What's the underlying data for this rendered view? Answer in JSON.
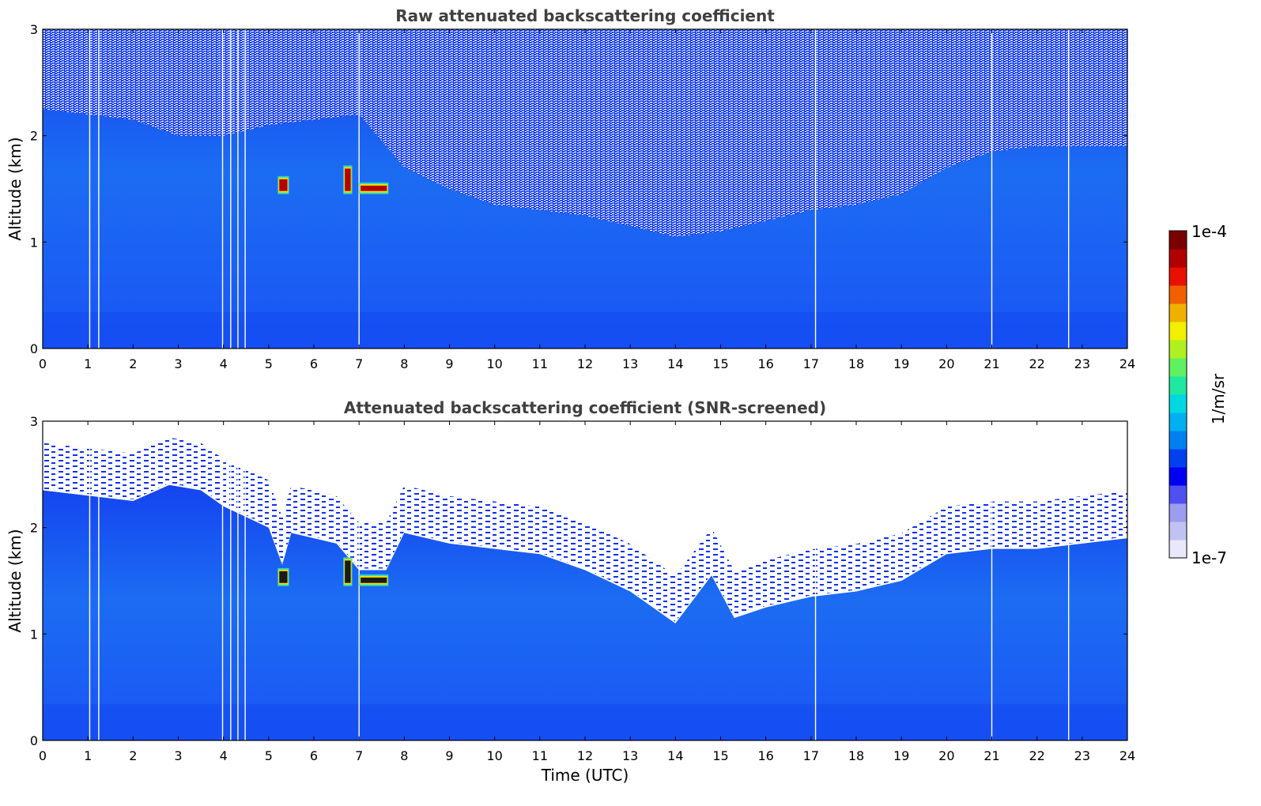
{
  "chart_data": [
    {
      "type": "heatmap",
      "id": "raw",
      "title": "Raw attenuated backscattering coefficient",
      "xlabel": "",
      "ylabel": "Altitude (km)",
      "xlim": [
        0,
        24
      ],
      "ylim": [
        0,
        3
      ],
      "xticks": [
        "0",
        "1",
        "2",
        "3",
        "4",
        "5",
        "6",
        "7",
        "8",
        "9",
        "10",
        "11",
        "12",
        "13",
        "14",
        "15",
        "16",
        "17",
        "18",
        "19",
        "20",
        "21",
        "22",
        "23",
        "24"
      ],
      "yticks": [
        "0",
        "1",
        "2",
        "3"
      ],
      "missing_profiles_utc": [
        1.04,
        1.24,
        3.98,
        4.16,
        4.32,
        4.48,
        7.0,
        17.1,
        21.0,
        22.7
      ],
      "cloud_segments": [
        {
          "t_start": 5.2,
          "t_end": 5.45,
          "alt_low": 1.45,
          "alt_high": 1.62
        },
        {
          "t_start": 6.65,
          "t_end": 6.85,
          "alt_low": 1.45,
          "alt_high": 1.72
        },
        {
          "t_start": 7.0,
          "t_end": 7.65,
          "alt_low": 1.45,
          "alt_high": 1.56
        }
      ],
      "noise_top_km": [
        {
          "t": 0,
          "alt": 2.25
        },
        {
          "t": 2,
          "alt": 2.15
        },
        {
          "t": 3,
          "alt": 2.0
        },
        {
          "t": 4,
          "alt": 2.0
        },
        {
          "t": 5,
          "alt": 2.1
        },
        {
          "t": 6,
          "alt": 2.15
        },
        {
          "t": 7,
          "alt": 2.2
        },
        {
          "t": 8,
          "alt": 1.7
        },
        {
          "t": 9,
          "alt": 1.5
        },
        {
          "t": 10,
          "alt": 1.35
        },
        {
          "t": 11,
          "alt": 1.3
        },
        {
          "t": 12,
          "alt": 1.25
        },
        {
          "t": 13,
          "alt": 1.15
        },
        {
          "t": 14,
          "alt": 1.05
        },
        {
          "t": 15,
          "alt": 1.1
        },
        {
          "t": 16,
          "alt": 1.2
        },
        {
          "t": 17,
          "alt": 1.3
        },
        {
          "t": 18,
          "alt": 1.35
        },
        {
          "t": 19,
          "alt": 1.45
        },
        {
          "t": 20,
          "alt": 1.7
        },
        {
          "t": 21,
          "alt": 1.85
        },
        {
          "t": 22,
          "alt": 1.9
        },
        {
          "t": 23,
          "alt": 1.9
        },
        {
          "t": 24,
          "alt": 1.9
        }
      ]
    },
    {
      "type": "heatmap",
      "id": "screened",
      "title": "Attenuated backscattering coefficient (SNR-screened)",
      "xlabel": "Time (UTC)",
      "ylabel": "Altitude (km)",
      "xlim": [
        0,
        24
      ],
      "ylim": [
        0,
        3
      ],
      "xticks": [
        "0",
        "1",
        "2",
        "3",
        "4",
        "5",
        "6",
        "7",
        "8",
        "9",
        "10",
        "11",
        "12",
        "13",
        "14",
        "15",
        "16",
        "17",
        "18",
        "19",
        "20",
        "21",
        "22",
        "23",
        "24"
      ],
      "yticks": [
        "0",
        "1",
        "2",
        "3"
      ],
      "missing_profiles_utc": [
        1.04,
        1.24,
        3.98,
        4.16,
        4.32,
        4.48,
        7.0,
        17.1,
        21.0,
        22.7
      ],
      "cloud_segments": [
        {
          "t_start": 5.2,
          "t_end": 5.45,
          "alt_low": 1.45,
          "alt_high": 1.62
        },
        {
          "t_start": 6.65,
          "t_end": 6.85,
          "alt_low": 1.45,
          "alt_high": 1.72
        },
        {
          "t_start": 7.0,
          "t_end": 7.65,
          "alt_low": 1.45,
          "alt_high": 1.56
        }
      ],
      "valid_top_km": [
        {
          "t": 0,
          "alt": 2.35
        },
        {
          "t": 1,
          "alt": 2.3
        },
        {
          "t": 2,
          "alt": 2.25
        },
        {
          "t": 2.8,
          "alt": 2.4
        },
        {
          "t": 3.5,
          "alt": 2.35
        },
        {
          "t": 4,
          "alt": 2.2
        },
        {
          "t": 5,
          "alt": 2.0
        },
        {
          "t": 5.3,
          "alt": 1.65
        },
        {
          "t": 5.5,
          "alt": 1.95
        },
        {
          "t": 6,
          "alt": 1.9
        },
        {
          "t": 6.5,
          "alt": 1.85
        },
        {
          "t": 7,
          "alt": 1.6
        },
        {
          "t": 7.6,
          "alt": 1.6
        },
        {
          "t": 8,
          "alt": 1.95
        },
        {
          "t": 9,
          "alt": 1.85
        },
        {
          "t": 10,
          "alt": 1.8
        },
        {
          "t": 11,
          "alt": 1.75
        },
        {
          "t": 12,
          "alt": 1.6
        },
        {
          "t": 13,
          "alt": 1.4
        },
        {
          "t": 13.5,
          "alt": 1.25
        },
        {
          "t": 14,
          "alt": 1.1
        },
        {
          "t": 14.8,
          "alt": 1.55
        },
        {
          "t": 15.3,
          "alt": 1.15
        },
        {
          "t": 16,
          "alt": 1.25
        },
        {
          "t": 17,
          "alt": 1.35
        },
        {
          "t": 18,
          "alt": 1.4
        },
        {
          "t": 19,
          "alt": 1.5
        },
        {
          "t": 20,
          "alt": 1.75
        },
        {
          "t": 21,
          "alt": 1.8
        },
        {
          "t": 22,
          "alt": 1.8
        },
        {
          "t": 23,
          "alt": 1.85
        },
        {
          "t": 24,
          "alt": 1.9
        }
      ]
    }
  ],
  "colorbar": {
    "label": "1/m/sr",
    "max_label": "1e-4",
    "min_label": "1e-7",
    "colors": [
      "#e8e8f8",
      "#c2c2f2",
      "#9c9cf0",
      "#5050f0",
      "#0000f0",
      "#0040f0",
      "#0080f0",
      "#00b0f0",
      "#00d8e0",
      "#20e8a0",
      "#60f060",
      "#b0f020",
      "#f0f000",
      "#f0b000",
      "#f06000",
      "#e81000",
      "#b00000",
      "#7a0000"
    ]
  }
}
